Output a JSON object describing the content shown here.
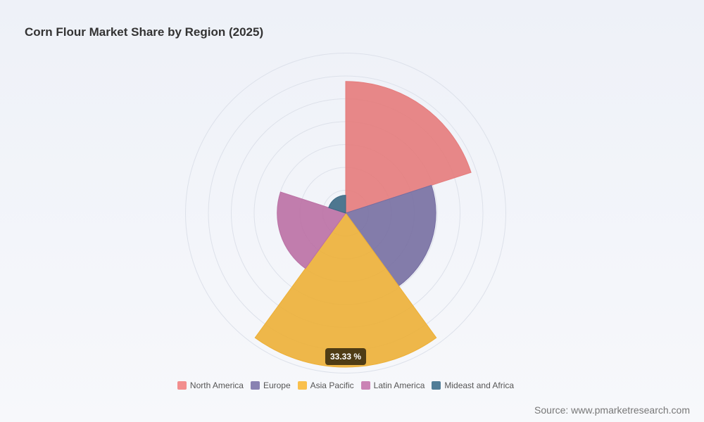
{
  "chart_data": {
    "type": "rose",
    "title": "Corn Flour Market Share by Region (2025)",
    "categories": [
      "North America",
      "Europe",
      "Asia Pacific",
      "Latin America",
      "Mideast and Africa"
    ],
    "values": [
      28.5,
      19.5,
      33.33,
      14.8,
      3.87
    ],
    "value_labels": [
      null,
      null,
      "33.33 %",
      null,
      null
    ],
    "colors": [
      "#f28282",
      "#7d74aa",
      "#f9b93a",
      "#c576ad",
      "#3f6f8c"
    ],
    "source": "Source: www.pmarketresearch.com"
  }
}
